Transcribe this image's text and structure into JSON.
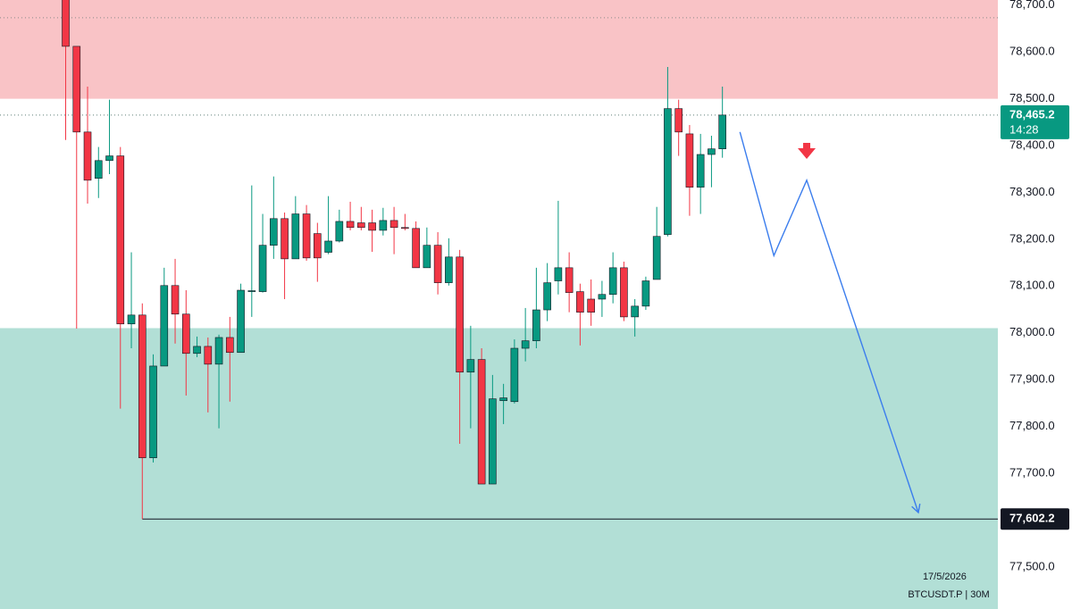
{
  "chart_data": {
    "type": "candlestick",
    "symbol": "BTCUSDT.P | 30M",
    "up_color": "#089981",
    "down_color": "#f23645",
    "xlim": [
      -6,
      85
    ],
    "ylim": [
      77410,
      78711
    ],
    "yticks": [
      {
        "value": 77500,
        "label": "77,500.0"
      },
      {
        "value": 77600,
        "label": "77,600.0"
      },
      {
        "value": 77700,
        "label": "77,700.0"
      },
      {
        "value": 77800,
        "label": "77,800.0"
      },
      {
        "value": 77900,
        "label": "77,900.0"
      },
      {
        "value": 78000,
        "label": "78,000.0"
      },
      {
        "value": 78100,
        "label": "78,100.0"
      },
      {
        "value": 78200,
        "label": "78,200.0"
      },
      {
        "value": 78300,
        "label": "78,300.0"
      },
      {
        "value": 78400,
        "label": "78,400.0"
      },
      {
        "value": 78500,
        "label": "78,500.0"
      },
      {
        "value": 78600,
        "label": "78,600.0"
      },
      {
        "value": 78700,
        "label": "78,700.0"
      }
    ],
    "xticks": [
      {
        "value": 80.3,
        "label": "17/5/2026"
      }
    ],
    "open": [
      78730,
      78612,
      78429,
      78330,
      78368,
      78378,
      78019,
      78038,
      77733,
      77929,
      78101,
      78040,
      77956,
      77971,
      77933,
      77990,
      77958,
      78088,
      78088,
      78187,
      78244,
      78158,
      78254,
      78212,
      78172,
      78196,
      78238,
      78235,
      78235,
      78219,
      78240,
      78225,
      78223,
      78139,
      78187,
      78107,
      78162,
      77916,
      77943,
      77677,
      77855,
      77853,
      77967,
      77983,
      78049,
      78111,
      78139,
      78088,
      78072,
      78072,
      78082,
      78139,
      78034,
      78057,
      78114,
      78210,
      78479,
      78425,
      78311,
      78381,
      78393
    ],
    "high": [
      78750,
      78612,
      78526,
      78397,
      78498,
      78397,
      78172,
      78063,
      77954,
      78139,
      78158,
      78091,
      77992,
      77990,
      77996,
      78034,
      78105,
      78315,
      78254,
      78334,
      78257,
      78292,
      78273,
      78235,
      78292,
      78263,
      78280,
      78269,
      78263,
      78267,
      78269,
      78254,
      78238,
      78225,
      78215,
      78202,
      78177,
      78015,
      77967,
      77910,
      77891,
      77986,
      78053,
      78139,
      78149,
      78282,
      78172,
      78105,
      78114,
      78111,
      78172,
      78152,
      78072,
      78120,
      78269,
      78568,
      78498,
      78444,
      78425,
      78421,
      78526
    ],
    "low": [
      78412,
      78009,
      78276,
      78288,
      78339,
      77838,
      77967,
      77602.2,
      77723,
      77929,
      77977,
      77866,
      77948,
      77830,
      77796,
      77853,
      77958,
      78034,
      78086,
      78158,
      78072,
      78158,
      78154,
      78109,
      78168,
      78193,
      78219,
      78219,
      78173,
      78208,
      78168,
      78219,
      78139,
      78139,
      78082,
      78101,
      77763,
      77796,
      77677,
      77677,
      77805,
      77849,
      77939,
      77967,
      78025,
      78082,
      78044,
      77973,
      78015,
      78034,
      78063,
      78025,
      77992,
      78049,
      78114,
      78206,
      78378,
      78250,
      78254,
      78311,
      78374
    ],
    "close": [
      78612,
      78429,
      78326,
      78368,
      78378,
      78019,
      78038,
      77733,
      77929,
      78101,
      78040,
      77956,
      77971,
      77933,
      77990,
      77958,
      78091,
      78090,
      78187,
      78244,
      78158,
      78254,
      78160,
      78160,
      78196,
      78238,
      78225,
      78225,
      78219,
      78240,
      78225,
      78223,
      78139,
      78187,
      78107,
      78162,
      77916,
      77943,
      77677,
      77859,
      77861,
      77967,
      77983,
      78049,
      78107,
      78139,
      78086,
      78044,
      78044,
      78082,
      78139,
      78034,
      78057,
      78111,
      78206,
      78479,
      78429,
      78311,
      78381,
      78393,
      78465.2
    ],
    "zones": [
      {
        "from": 78500,
        "to": 78711,
        "color": "#f9c3c6"
      },
      {
        "from": 77410,
        "to": 78010,
        "color": "#b2dfd6"
      }
    ],
    "dotted_line": 78673,
    "last_price": {
      "value": 78465.2,
      "label": "78,465.2",
      "countdown": "14:28"
    },
    "support": {
      "value": 77602.2,
      "label": "77,602.2",
      "from": 7
    },
    "projection": {
      "color": "#3b7ded",
      "x": [
        61.6,
        64.7,
        67.7,
        77.9
      ],
      "y": [
        78429,
        78165,
        78326,
        77616
      ]
    },
    "signal_arrow": {
      "x": 67.7,
      "y": 78383,
      "color": "#f23645"
    }
  }
}
